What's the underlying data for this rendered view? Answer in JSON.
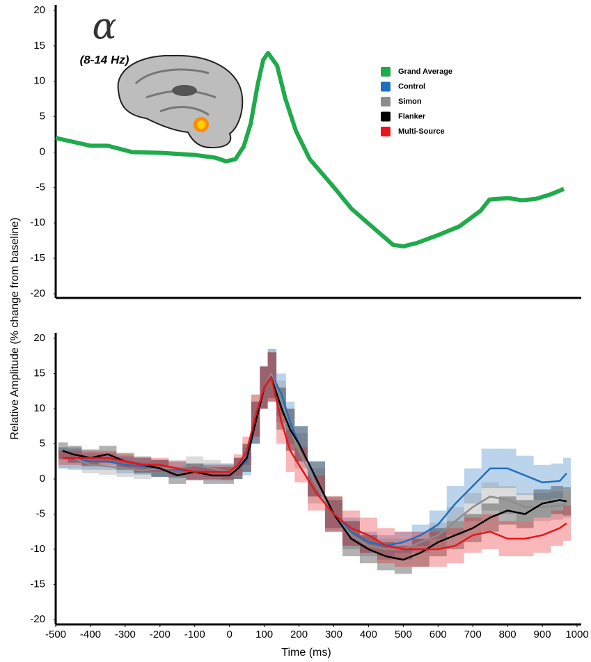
{
  "chart_data": [
    {
      "type": "line",
      "annotations": [
        "α",
        "(8-14 Hz)"
      ],
      "ylabel": "Relative Amplitude (% change from baseline)",
      "xlim": [
        -500,
        1000
      ],
      "ylim": [
        -20,
        20
      ],
      "yticks": [
        -20,
        -15,
        -10,
        -5,
        0,
        5,
        10,
        15,
        20
      ],
      "series": [
        {
          "name": "Grand Average",
          "color": "#1faa4b",
          "x": [
            -500,
            -400,
            -350,
            -280,
            -200,
            -100,
            -40,
            -10,
            17,
            41,
            61,
            81,
            97,
            111,
            137,
            161,
            191,
            231,
            301,
            351,
            421,
            471,
            501,
            541,
            601,
            661,
            722,
            748,
            802,
            842,
            882,
            922,
            962
          ],
          "values": [
            2.0,
            0.9,
            0.9,
            0.0,
            -0.1,
            -0.4,
            -0.8,
            -1.3,
            -1.0,
            0.8,
            4,
            9.5,
            13,
            14.0,
            12.2,
            7.5,
            3,
            -1,
            -5,
            -8,
            -11,
            -13.1,
            -13.3,
            -12.8,
            -11.7,
            -10.5,
            -8.3,
            -6.7,
            -6.5,
            -6.8,
            -6.6,
            -6.0,
            -5.2
          ]
        }
      ]
    },
    {
      "type": "line",
      "xlabel": "Time (ms)",
      "xlim": [
        -500,
        1000
      ],
      "ylim": [
        -20,
        20
      ],
      "xticks": [
        -500,
        -400,
        -300,
        -200,
        -100,
        0,
        100,
        200,
        300,
        400,
        500,
        600,
        700,
        800,
        900,
        1000
      ],
      "yticks": [
        -20,
        -15,
        -10,
        -5,
        0,
        5,
        10,
        15,
        20
      ],
      "x": [
        -480,
        -450,
        -400,
        -350,
        -300,
        -250,
        -200,
        -150,
        -100,
        -50,
        0,
        25,
        50,
        75,
        100,
        120,
        150,
        175,
        200,
        250,
        300,
        350,
        400,
        450,
        500,
        550,
        600,
        650,
        700,
        750,
        800,
        850,
        900,
        950,
        970
      ],
      "series": [
        {
          "name": "Control",
          "color": "#1f6fbf",
          "values": [
            3.0,
            2.8,
            2.5,
            2.5,
            2.0,
            1.8,
            1.5,
            1.3,
            1.0,
            1.0,
            1.0,
            1.5,
            2.5,
            8,
            13,
            15,
            12,
            8,
            5,
            0,
            -5,
            -7.5,
            -9,
            -9.5,
            -9,
            -8,
            -6.5,
            -3.5,
            -1,
            1.5,
            1.5,
            0.5,
            -0.5,
            -0.3,
            0.8
          ],
          "errors": [
            1.5,
            1.5,
            1.2,
            1.2,
            1.2,
            1.2,
            1.2,
            1.2,
            1.2,
            1.2,
            1.2,
            1.5,
            2,
            3,
            3,
            3.5,
            3,
            3,
            2.5,
            2.5,
            2,
            2,
            1.5,
            1.5,
            1.5,
            1.5,
            2,
            2.5,
            2.5,
            2.8,
            2.8,
            2.8,
            2.5,
            2.5,
            2.2
          ]
        },
        {
          "name": "Simon",
          "color": "#8c8c8c",
          "values": [
            3.0,
            3.0,
            2.0,
            1.8,
            1.5,
            1.2,
            1.5,
            1.5,
            2.0,
            1.5,
            1.0,
            1.5,
            3,
            9,
            13,
            15,
            11,
            7,
            4,
            -1,
            -5,
            -8,
            -9.5,
            -10,
            -10,
            -9,
            -8,
            -6,
            -4,
            -2.5,
            -3,
            -4,
            -4,
            -3.8,
            -3.5
          ],
          "errors": [
            1.5,
            1.5,
            1.2,
            1.2,
            1.2,
            1.2,
            1.2,
            1.2,
            1.2,
            1.2,
            1.2,
            1.5,
            2,
            3,
            3,
            3.5,
            3,
            3,
            2.5,
            2.5,
            2,
            2,
            1.5,
            1.5,
            1.5,
            1.5,
            1.8,
            2,
            2,
            2,
            2,
            2,
            2,
            2,
            2
          ]
        },
        {
          "name": "Flanker",
          "color": "#000000",
          "values": [
            4.0,
            3.5,
            3.0,
            3.5,
            2.5,
            2.0,
            1.5,
            0.5,
            1.0,
            0.5,
            0.5,
            1.5,
            3,
            8,
            13,
            14.5,
            10,
            7,
            5,
            0,
            -5,
            -8.5,
            -10,
            -11,
            -11.5,
            -10.5,
            -9,
            -8,
            -7,
            -5.5,
            -4.5,
            -5,
            -3.5,
            -3,
            -3.2
          ],
          "errors": [
            1.2,
            1.2,
            1.2,
            1.2,
            1.2,
            1.2,
            1.2,
            1.2,
            1.2,
            1.2,
            1.2,
            1.5,
            2,
            3,
            3,
            3.5,
            3,
            3,
            2.5,
            2.5,
            2.5,
            2.5,
            2,
            2,
            2,
            2,
            2,
            2,
            2,
            2,
            2,
            2,
            2,
            2,
            2
          ]
        },
        {
          "name": "Multi-Source",
          "color": "#e8141b",
          "values": [
            3.0,
            3.0,
            3.0,
            3.0,
            2.5,
            2.0,
            2.0,
            1.5,
            1.0,
            1.0,
            1.0,
            2.0,
            4,
            9,
            13,
            14.5,
            8,
            4,
            2,
            -2,
            -5,
            -7,
            -8,
            -9.5,
            -10,
            -10,
            -10,
            -9.5,
            -8,
            -7.5,
            -8.5,
            -8.5,
            -8,
            -7,
            -6.3
          ],
          "errors": [
            1,
            1,
            1,
            1,
            1,
            1,
            1,
            1,
            1,
            1,
            1,
            1.5,
            2,
            3,
            3,
            3.5,
            3,
            3,
            2.5,
            2.5,
            2.5,
            2.5,
            2.5,
            2.5,
            2.5,
            2.5,
            2.5,
            2.5,
            2.5,
            2.5,
            2.5,
            2.5,
            2.5,
            2.5,
            2.5
          ]
        }
      ]
    }
  ]
}
